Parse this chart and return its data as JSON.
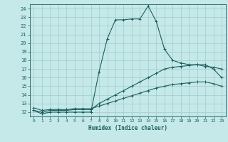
{
  "title": "",
  "xlabel": "Humidex (Indice chaleur)",
  "ylabel": "",
  "xlim": [
    -0.5,
    23.5
  ],
  "ylim": [
    11.5,
    24.5
  ],
  "yticks": [
    12,
    13,
    14,
    15,
    16,
    17,
    18,
    19,
    20,
    21,
    22,
    23,
    24
  ],
  "xticks": [
    0,
    1,
    2,
    3,
    4,
    5,
    6,
    7,
    8,
    9,
    10,
    11,
    12,
    13,
    14,
    15,
    16,
    17,
    18,
    19,
    20,
    21,
    22,
    23
  ],
  "bg_color": "#c5e8e8",
  "grid_color": "#a0cccc",
  "line_color": "#1a5f5f",
  "line1_x": [
    0,
    1,
    2,
    3,
    4,
    5,
    6,
    7,
    8,
    9,
    10,
    11,
    12,
    13,
    14,
    15,
    16,
    17,
    18,
    19,
    20,
    21,
    22,
    23
  ],
  "line1_y": [
    12.2,
    11.8,
    12.0,
    12.0,
    12.0,
    12.0,
    12.0,
    12.0,
    16.7,
    20.5,
    22.7,
    22.7,
    22.8,
    22.8,
    24.3,
    22.5,
    19.3,
    18.0,
    17.7,
    17.5,
    17.5,
    17.3,
    17.2,
    17.0
  ],
  "line2_x": [
    0,
    1,
    2,
    3,
    4,
    5,
    6,
    7,
    8,
    9,
    10,
    11,
    12,
    13,
    14,
    15,
    16,
    17,
    18,
    19,
    20,
    21,
    22,
    23
  ],
  "line2_y": [
    12.2,
    12.0,
    12.2,
    12.2,
    12.2,
    12.3,
    12.3,
    12.3,
    13.0,
    13.5,
    14.0,
    14.5,
    15.0,
    15.5,
    16.0,
    16.5,
    17.0,
    17.2,
    17.3,
    17.4,
    17.5,
    17.5,
    17.0,
    16.0
  ],
  "line3_x": [
    0,
    1,
    2,
    3,
    4,
    5,
    6,
    7,
    8,
    9,
    10,
    11,
    12,
    13,
    14,
    15,
    16,
    17,
    18,
    19,
    20,
    21,
    22,
    23
  ],
  "line3_y": [
    12.5,
    12.2,
    12.3,
    12.3,
    12.3,
    12.4,
    12.4,
    12.4,
    12.7,
    13.0,
    13.3,
    13.6,
    13.9,
    14.2,
    14.5,
    14.8,
    15.0,
    15.2,
    15.3,
    15.4,
    15.5,
    15.5,
    15.3,
    15.0
  ]
}
